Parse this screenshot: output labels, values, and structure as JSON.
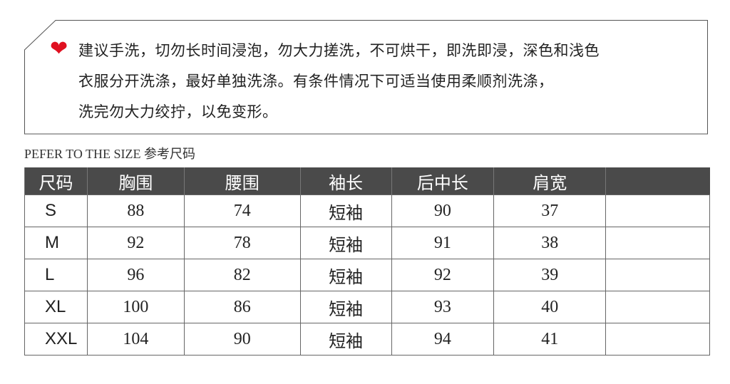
{
  "care_note": {
    "icon": "heart-icon",
    "icon_color": "#e01020",
    "lines": [
      "建议手洗，切勿长时间浸泡，勿大力搓洗，不可烘干，即洗即浸，深色和浅色",
      "衣服分开洗涤，最好单独洗涤。有条件情况下可适当使用柔顺剂洗涤，",
      "洗完勿大力绞拧，以免变形。"
    ]
  },
  "caption": "PEFER TO THE SIZE 参考尺码",
  "table": {
    "headers": [
      "尺码",
      "胸围",
      "腰围",
      "袖长",
      "后中长",
      "肩宽",
      ""
    ],
    "rows": [
      [
        "S",
        "88",
        "74",
        "短袖",
        "90",
        "37",
        ""
      ],
      [
        "M",
        "92",
        "78",
        "短袖",
        "91",
        "38",
        ""
      ],
      [
        "L",
        "96",
        "82",
        "短袖",
        "92",
        "39",
        ""
      ],
      [
        "XL",
        "100",
        "86",
        "短袖",
        "93",
        "40",
        ""
      ],
      [
        "XXL",
        "104",
        "90",
        "短袖",
        "94",
        "41",
        ""
      ]
    ]
  }
}
